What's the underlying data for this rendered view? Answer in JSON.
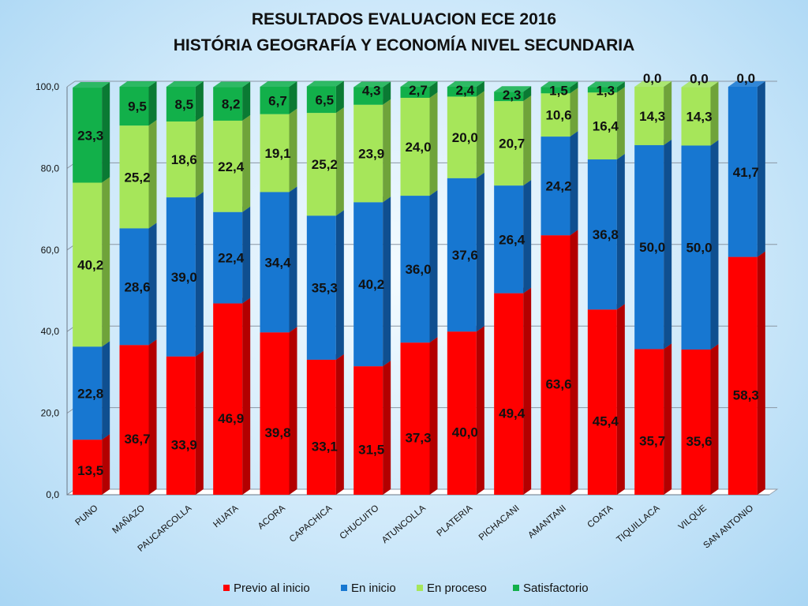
{
  "chart_data": {
    "type": "bar",
    "stacked": true,
    "title": "RESULTADOS EVALUACION ECE 2016",
    "subtitle": "HISTÓRIA GEOGRAFÍA Y ECONOMÍA NIVEL SECUNDARIA",
    "xlabel": "",
    "ylabel": "",
    "ylim": [
      0,
      100
    ],
    "yticks": [
      "0,0",
      "20,0",
      "40,0",
      "60,0",
      "80,0",
      "100,0"
    ],
    "grid": true,
    "legend_position": "bottom",
    "categories": [
      "PUNO",
      "MAÑAZO",
      "PAUCARCOLLA",
      "HUATA",
      "ACORA",
      "CAPACHICA",
      "CHUCUITO",
      "ATUNCOLLA",
      "PLATERIA",
      "PICHACANI",
      "AMANTANI",
      "COATA",
      "TIQUILLACA",
      "VILQUE",
      "SAN ANTONIO"
    ],
    "series": [
      {
        "name": "Previo al inicio",
        "color": "#ff0000",
        "side_color": "#b30000",
        "values": [
          13.5,
          36.7,
          33.9,
          46.9,
          39.8,
          33.1,
          31.5,
          37.3,
          40.0,
          49.4,
          63.6,
          45.4,
          35.7,
          35.6,
          58.3
        ],
        "labels": [
          "13,5",
          "36,7",
          "33,9",
          "46,9",
          "39,8",
          "33,1",
          "31,5",
          "37,3",
          "40,0",
          "49,4",
          "63,6",
          "45,4",
          "35,7",
          "35,6",
          "58,3"
        ]
      },
      {
        "name": "En inicio",
        "color": "#1777d1",
        "side_color": "#0f4f90",
        "values": [
          22.8,
          28.6,
          39.0,
          22.4,
          34.4,
          35.3,
          40.2,
          36.0,
          37.6,
          26.4,
          24.2,
          36.8,
          50.0,
          50.0,
          41.7
        ],
        "labels": [
          "22,8",
          "28,6",
          "39,0",
          "22,4",
          "34,4",
          "35,3",
          "40,2",
          "36,0",
          "37,6",
          "26,4",
          "24,2",
          "36,8",
          "50,0",
          "50,0",
          "41,7"
        ]
      },
      {
        "name": "En proceso",
        "color": "#a6e65a",
        "side_color": "#6fa33a",
        "values": [
          40.2,
          25.2,
          18.6,
          22.4,
          19.1,
          25.2,
          23.9,
          24.0,
          20.0,
          20.7,
          10.6,
          16.4,
          14.3,
          14.3,
          0.0
        ],
        "labels": [
          "40,2",
          "25,2",
          "18,6",
          "22,4",
          "19,1",
          "25,2",
          "23,9",
          "24,0",
          "20,0",
          "20,7",
          "10,6",
          "16,4",
          "14,3",
          "14,3",
          ""
        ]
      },
      {
        "name": "Satisfactorio",
        "color": "#12b04a",
        "side_color": "#0a7a33",
        "values": [
          23.3,
          9.5,
          8.5,
          8.2,
          6.7,
          6.5,
          4.3,
          2.7,
          2.4,
          2.3,
          1.5,
          1.3,
          0.0,
          0.0,
          0.0
        ],
        "labels": [
          "23,3",
          "9,5",
          "8,5",
          "8,2",
          "6,7",
          "6,5",
          "4,3",
          "2,7",
          "2,4",
          "2,3",
          "1,5",
          "1,3",
          "0,0",
          "0,0",
          "0,0"
        ]
      }
    ]
  }
}
